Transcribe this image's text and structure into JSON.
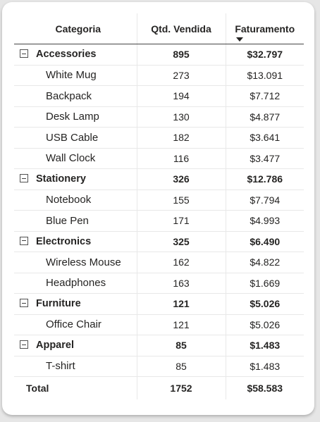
{
  "header": {
    "category": "Categoria",
    "qty": "Qtd. Vendida",
    "revenue": "Faturamento"
  },
  "groups": [
    {
      "name": "Accessories",
      "qty": "895",
      "revenue": "$32.797",
      "items": [
        {
          "name": "White Mug",
          "qty": "273",
          "revenue": "$13.091"
        },
        {
          "name": "Backpack",
          "qty": "194",
          "revenue": "$7.712"
        },
        {
          "name": "Desk Lamp",
          "qty": "130",
          "revenue": "$4.877"
        },
        {
          "name": "USB Cable",
          "qty": "182",
          "revenue": "$3.641"
        },
        {
          "name": "Wall Clock",
          "qty": "116",
          "revenue": "$3.477"
        }
      ]
    },
    {
      "name": "Stationery",
      "qty": "326",
      "revenue": "$12.786",
      "items": [
        {
          "name": "Notebook",
          "qty": "155",
          "revenue": "$7.794"
        },
        {
          "name": "Blue Pen",
          "qty": "171",
          "revenue": "$4.993"
        }
      ]
    },
    {
      "name": "Electronics",
      "qty": "325",
      "revenue": "$6.490",
      "items": [
        {
          "name": "Wireless Mouse",
          "qty": "162",
          "revenue": "$4.822"
        },
        {
          "name": "Headphones",
          "qty": "163",
          "revenue": "$1.669"
        }
      ]
    },
    {
      "name": "Furniture",
      "qty": "121",
      "revenue": "$5.026",
      "items": [
        {
          "name": "Office Chair",
          "qty": "121",
          "revenue": "$5.026"
        }
      ]
    },
    {
      "name": "Apparel",
      "qty": "85",
      "revenue": "$1.483",
      "items": [
        {
          "name": "T-shirt",
          "qty": "85",
          "revenue": "$1.483"
        }
      ]
    }
  ],
  "total": {
    "label": "Total",
    "qty": "1752",
    "revenue": "$58.583"
  },
  "sort": {
    "column": "Faturamento",
    "direction": "descending",
    "icon": "sort-descending-icon"
  },
  "colors": {
    "text": "#252423",
    "rule": "#444444",
    "gridline": "#e8e8e8",
    "card": "#ffffff",
    "canvas": "#e6e6e6"
  }
}
